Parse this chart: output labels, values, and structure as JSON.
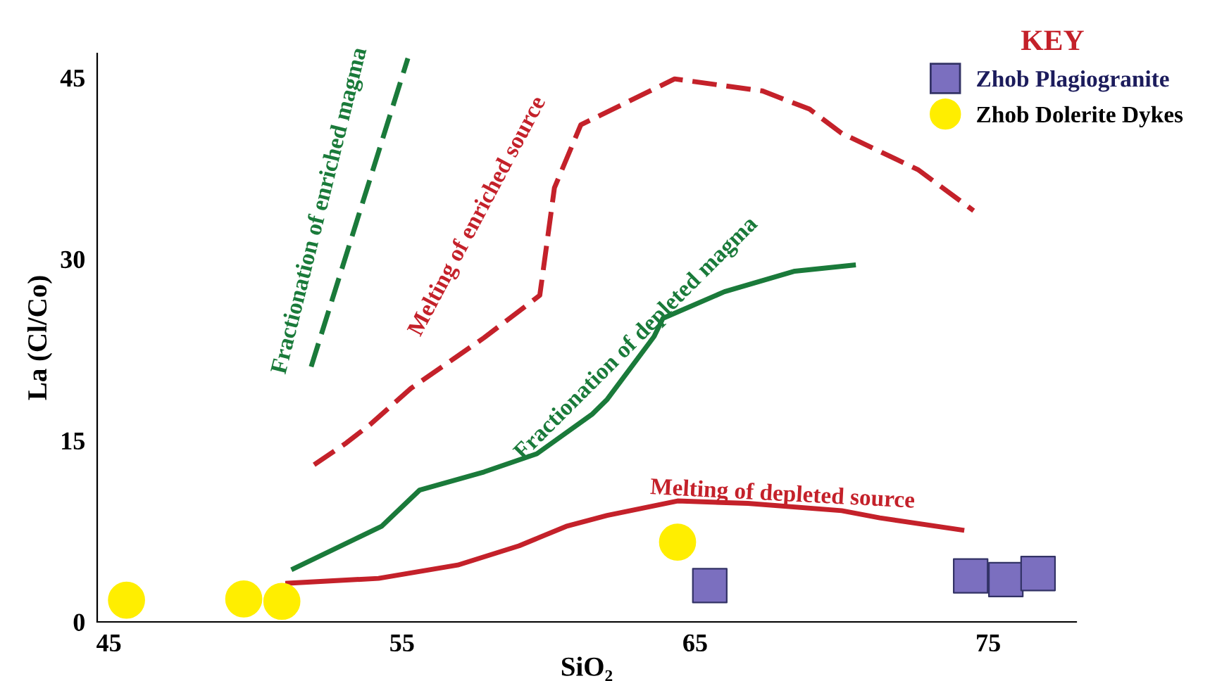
{
  "chart_data": {
    "type": "scatter",
    "xlabel": "SiO₂",
    "ylabel": "La (Cl/Co)",
    "legend_title": "KEY",
    "xlim": [
      44.6,
      78
    ],
    "xticks": [
      45,
      55,
      65,
      75
    ],
    "ylim": [
      0,
      47
    ],
    "yticks": [
      0,
      15,
      30,
      45
    ],
    "grid": false,
    "legend": "top right",
    "series": [
      {
        "name": "Zhob Plagiogranite",
        "marker": "square",
        "color": "#7b6fbf",
        "x": [
          65.5,
          74.4,
          75.6,
          76.7
        ],
        "values": [
          3.0,
          3.8,
          3.5,
          4.0
        ]
      },
      {
        "name": "Zhob Dolerite Dykes",
        "marker": "circle",
        "color": "#ffee00",
        "x": [
          45.6,
          49.6,
          50.9,
          64.4
        ],
        "values": [
          1.8,
          1.9,
          1.7,
          6.6
        ]
      },
      {
        "type": "line",
        "line_style": "dashed",
        "color": "#1a7a3a",
        "x": [
          51.9,
          55.2
        ],
        "values": [
          21.1,
          46.6
        ]
      },
      {
        "type": "line",
        "line_style": "dashed",
        "color": "#c4212a",
        "x": [
          52.0,
          53.1,
          53.9,
          55.3,
          57.8,
          59.7,
          60.2,
          61.1,
          64.3,
          67.3,
          68.9,
          70.0,
          72.6,
          74.5
        ],
        "values": [
          13.0,
          14.8,
          16.3,
          19.3,
          23.5,
          27.0,
          35.9,
          41.1,
          44.9,
          43.9,
          42.4,
          40.4,
          37.4,
          34.0
        ]
      },
      {
        "type": "line",
        "line_style": "solid",
        "color": "#1a7a3a",
        "x": [
          51.3,
          54.3,
          55.6,
          57.8,
          59.6,
          61.5,
          62.0,
          63.6,
          63.9,
          66.0,
          68.4,
          70.4
        ],
        "values": [
          4.4,
          7.9,
          10.9,
          12.4,
          13.9,
          17.2,
          18.4,
          23.6,
          25.1,
          27.3,
          29.0,
          29.5
        ]
      },
      {
        "type": "line",
        "line_style": "solid",
        "color": "#c4212a",
        "x": [
          51.1,
          54.2,
          56.9,
          59.0,
          60.6,
          62.0,
          64.4,
          66.8,
          70.0,
          71.3,
          74.1
        ],
        "values": [
          3.2,
          3.6,
          4.7,
          6.3,
          7.9,
          8.8,
          10.0,
          9.8,
          9.2,
          8.6,
          7.6
        ]
      }
    ],
    "annotations": [
      "Fractionation of enriched magma",
      "Melting of enriched source",
      "Fractionation of depleted magma",
      "Melting of depleted source"
    ]
  }
}
